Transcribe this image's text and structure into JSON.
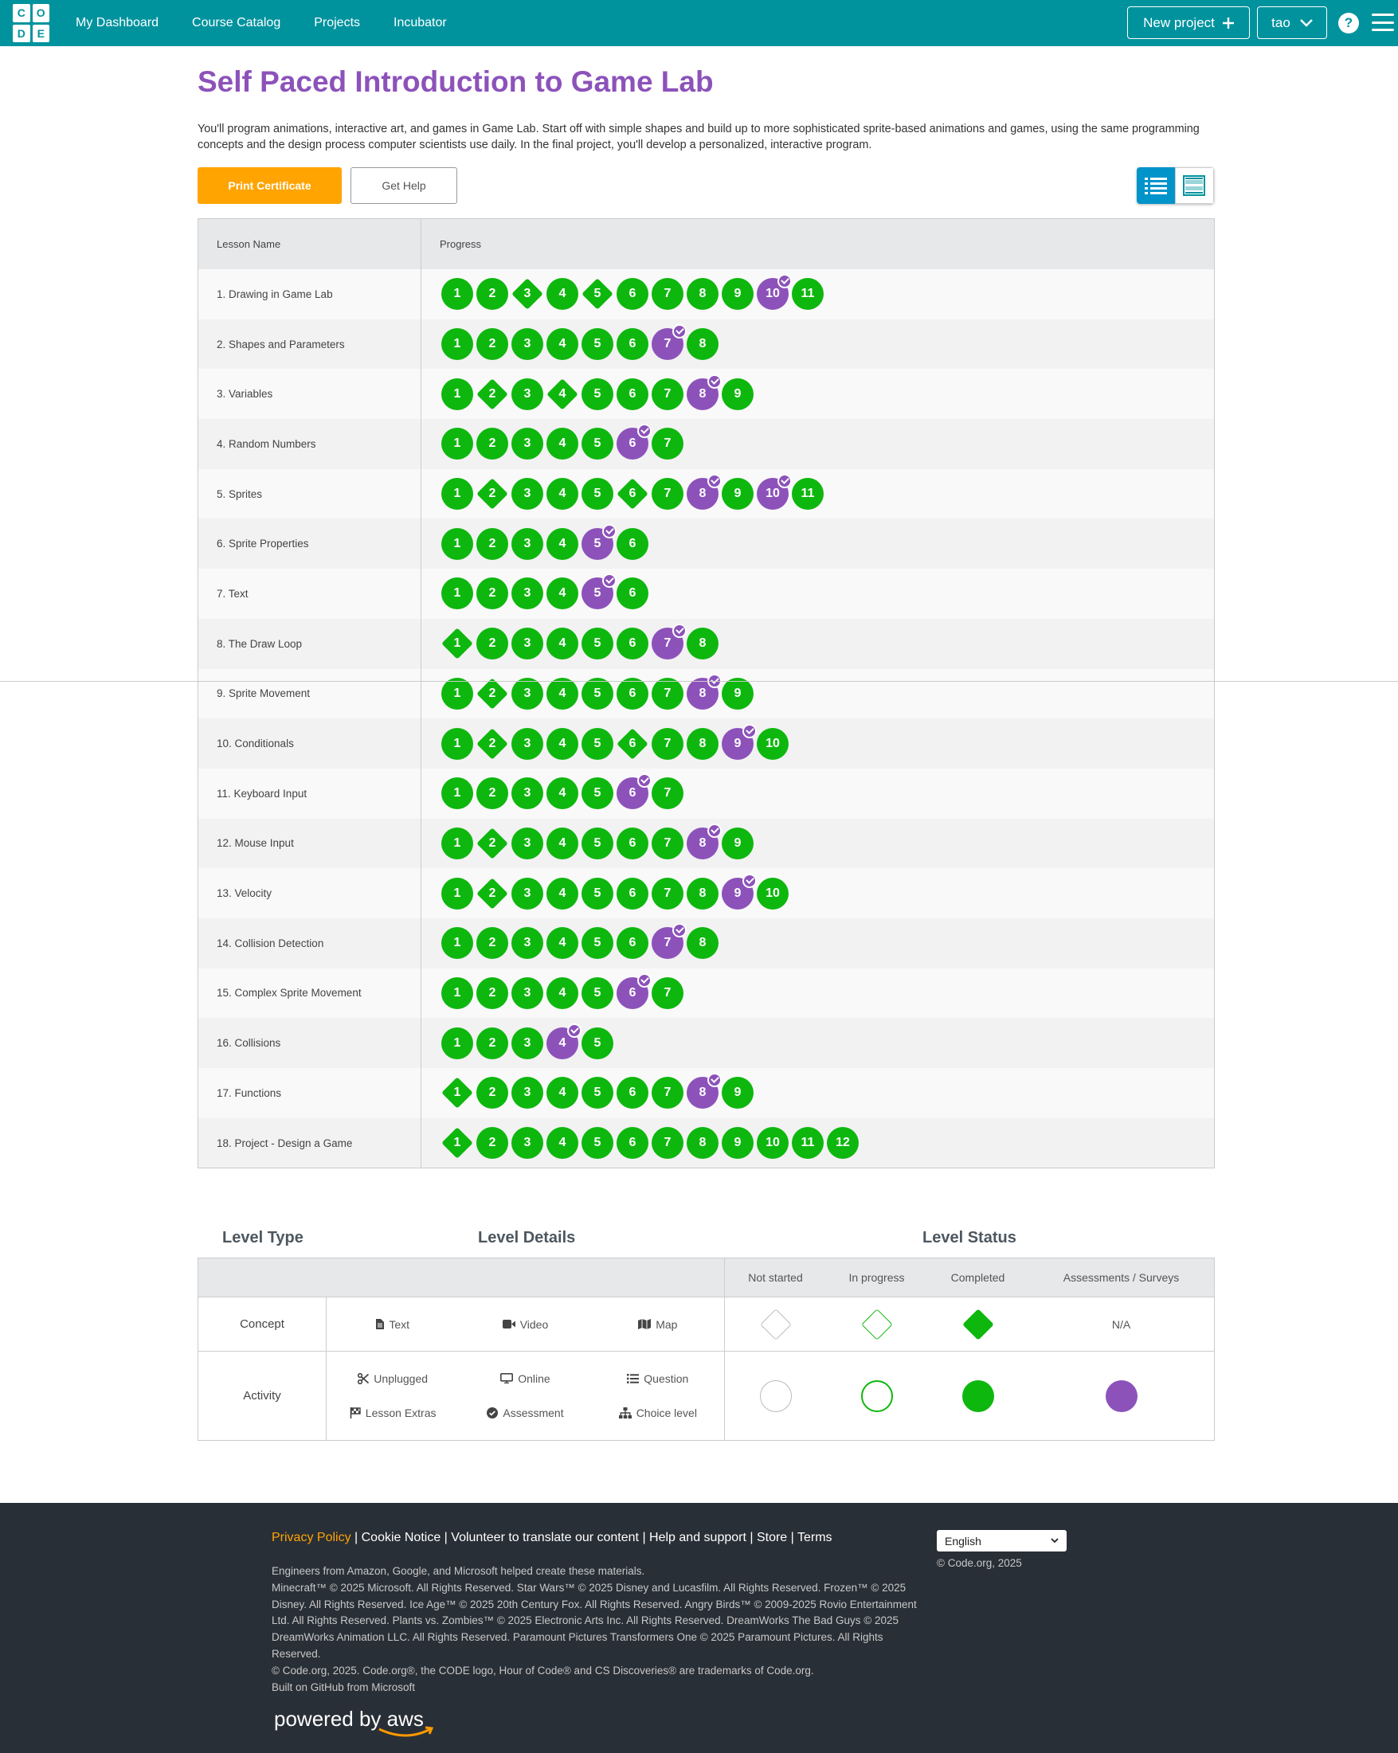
{
  "header": {
    "logo_letters": [
      "C",
      "O",
      "D",
      "E"
    ],
    "nav": [
      "My Dashboard",
      "Course Catalog",
      "Projects",
      "Incubator"
    ],
    "new_project": "New project",
    "user": "tao"
  },
  "course": {
    "title": "Self Paced Introduction to Game Lab",
    "description": "You'll program animations, interactive art, and games in Game Lab. Start off with simple shapes and build up to more sophisticated sprite-based animations and games, using the same programming concepts and the design process computer scientists use daily. In the final project, you'll develop a personalized, interactive program.",
    "print_certificate": "Print Certificate",
    "get_help": "Get Help"
  },
  "progress_table": {
    "col_lesson": "Lesson Name",
    "col_progress": "Progress",
    "lessons": [
      {
        "name": "1. Drawing in Game Lab",
        "levels": [
          [
            "1",
            "c"
          ],
          [
            "2",
            "c"
          ],
          [
            "3",
            "d"
          ],
          [
            "4",
            "c"
          ],
          [
            "5",
            "d"
          ],
          [
            "6",
            "c"
          ],
          [
            "7",
            "c"
          ],
          [
            "8",
            "c"
          ],
          [
            "9",
            "c"
          ],
          [
            "10",
            "a"
          ],
          [
            "11",
            "c"
          ]
        ]
      },
      {
        "name": "2. Shapes and Parameters",
        "levels": [
          [
            "1",
            "c"
          ],
          [
            "2",
            "c"
          ],
          [
            "3",
            "c"
          ],
          [
            "4",
            "c"
          ],
          [
            "5",
            "c"
          ],
          [
            "6",
            "c"
          ],
          [
            "7",
            "a"
          ],
          [
            "8",
            "c"
          ]
        ]
      },
      {
        "name": "3. Variables",
        "levels": [
          [
            "1",
            "c"
          ],
          [
            "2",
            "d"
          ],
          [
            "3",
            "c"
          ],
          [
            "4",
            "d"
          ],
          [
            "5",
            "c"
          ],
          [
            "6",
            "c"
          ],
          [
            "7",
            "c"
          ],
          [
            "8",
            "a"
          ],
          [
            "9",
            "c"
          ]
        ]
      },
      {
        "name": "4. Random Numbers",
        "levels": [
          [
            "1",
            "c"
          ],
          [
            "2",
            "c"
          ],
          [
            "3",
            "c"
          ],
          [
            "4",
            "c"
          ],
          [
            "5",
            "c"
          ],
          [
            "6",
            "a"
          ],
          [
            "7",
            "c"
          ]
        ]
      },
      {
        "name": "5. Sprites",
        "levels": [
          [
            "1",
            "c"
          ],
          [
            "2",
            "d"
          ],
          [
            "3",
            "c"
          ],
          [
            "4",
            "c"
          ],
          [
            "5",
            "c"
          ],
          [
            "6",
            "d"
          ],
          [
            "7",
            "c"
          ],
          [
            "8",
            "a"
          ],
          [
            "9",
            "c"
          ],
          [
            "10",
            "a"
          ],
          [
            "11",
            "c"
          ]
        ]
      },
      {
        "name": "6. Sprite Properties",
        "levels": [
          [
            "1",
            "c"
          ],
          [
            "2",
            "c"
          ],
          [
            "3",
            "c"
          ],
          [
            "4",
            "c"
          ],
          [
            "5",
            "a"
          ],
          [
            "6",
            "c"
          ]
        ]
      },
      {
        "name": "7. Text",
        "levels": [
          [
            "1",
            "c"
          ],
          [
            "2",
            "c"
          ],
          [
            "3",
            "c"
          ],
          [
            "4",
            "c"
          ],
          [
            "5",
            "a"
          ],
          [
            "6",
            "c"
          ]
        ]
      },
      {
        "name": "8. The Draw Loop",
        "levels": [
          [
            "1",
            "d"
          ],
          [
            "2",
            "c"
          ],
          [
            "3",
            "c"
          ],
          [
            "4",
            "c"
          ],
          [
            "5",
            "c"
          ],
          [
            "6",
            "c"
          ],
          [
            "7",
            "a"
          ],
          [
            "8",
            "c"
          ]
        ]
      },
      {
        "name": "9. Sprite Movement",
        "levels": [
          [
            "1",
            "c"
          ],
          [
            "2",
            "d"
          ],
          [
            "3",
            "c"
          ],
          [
            "4",
            "c"
          ],
          [
            "5",
            "c"
          ],
          [
            "6",
            "c"
          ],
          [
            "7",
            "c"
          ],
          [
            "8",
            "a"
          ],
          [
            "9",
            "c"
          ]
        ]
      },
      {
        "name": "10. Conditionals",
        "levels": [
          [
            "1",
            "c"
          ],
          [
            "2",
            "d"
          ],
          [
            "3",
            "c"
          ],
          [
            "4",
            "c"
          ],
          [
            "5",
            "c"
          ],
          [
            "6",
            "d"
          ],
          [
            "7",
            "c"
          ],
          [
            "8",
            "c"
          ],
          [
            "9",
            "a"
          ],
          [
            "10",
            "c"
          ]
        ]
      },
      {
        "name": "11. Keyboard Input",
        "levels": [
          [
            "1",
            "c"
          ],
          [
            "2",
            "c"
          ],
          [
            "3",
            "c"
          ],
          [
            "4",
            "c"
          ],
          [
            "5",
            "c"
          ],
          [
            "6",
            "a"
          ],
          [
            "7",
            "c"
          ]
        ]
      },
      {
        "name": "12. Mouse Input",
        "levels": [
          [
            "1",
            "c"
          ],
          [
            "2",
            "d"
          ],
          [
            "3",
            "c"
          ],
          [
            "4",
            "c"
          ],
          [
            "5",
            "c"
          ],
          [
            "6",
            "c"
          ],
          [
            "7",
            "c"
          ],
          [
            "8",
            "a"
          ],
          [
            "9",
            "c"
          ]
        ]
      },
      {
        "name": "13. Velocity",
        "levels": [
          [
            "1",
            "c"
          ],
          [
            "2",
            "d"
          ],
          [
            "3",
            "c"
          ],
          [
            "4",
            "c"
          ],
          [
            "5",
            "c"
          ],
          [
            "6",
            "c"
          ],
          [
            "7",
            "c"
          ],
          [
            "8",
            "c"
          ],
          [
            "9",
            "a"
          ],
          [
            "10",
            "c"
          ]
        ]
      },
      {
        "name": "14. Collision Detection",
        "levels": [
          [
            "1",
            "c"
          ],
          [
            "2",
            "c"
          ],
          [
            "3",
            "c"
          ],
          [
            "4",
            "c"
          ],
          [
            "5",
            "c"
          ],
          [
            "6",
            "c"
          ],
          [
            "7",
            "a"
          ],
          [
            "8",
            "c"
          ]
        ]
      },
      {
        "name": "15. Complex Sprite Movement",
        "levels": [
          [
            "1",
            "c"
          ],
          [
            "2",
            "c"
          ],
          [
            "3",
            "c"
          ],
          [
            "4",
            "c"
          ],
          [
            "5",
            "c"
          ],
          [
            "6",
            "a"
          ],
          [
            "7",
            "c"
          ]
        ]
      },
      {
        "name": "16. Collisions",
        "levels": [
          [
            "1",
            "c"
          ],
          [
            "2",
            "c"
          ],
          [
            "3",
            "c"
          ],
          [
            "4",
            "a"
          ],
          [
            "5",
            "c"
          ]
        ]
      },
      {
        "name": "17. Functions",
        "levels": [
          [
            "1",
            "d"
          ],
          [
            "2",
            "c"
          ],
          [
            "3",
            "c"
          ],
          [
            "4",
            "c"
          ],
          [
            "5",
            "c"
          ],
          [
            "6",
            "c"
          ],
          [
            "7",
            "c"
          ],
          [
            "8",
            "a"
          ],
          [
            "9",
            "c"
          ]
        ]
      },
      {
        "name": "18. Project - Design a Game",
        "levels": [
          [
            "1",
            "d"
          ],
          [
            "2",
            "c"
          ],
          [
            "3",
            "c"
          ],
          [
            "4",
            "c"
          ],
          [
            "5",
            "c"
          ],
          [
            "6",
            "c"
          ],
          [
            "7",
            "c"
          ],
          [
            "8",
            "c"
          ],
          [
            "9",
            "c"
          ],
          [
            "10",
            "c"
          ],
          [
            "11",
            "c"
          ],
          [
            "12",
            "c"
          ]
        ]
      }
    ]
  },
  "key": {
    "level_type": "Level Type",
    "level_details": "Level Details",
    "level_status": "Level Status",
    "statuses": [
      "Not started",
      "In progress",
      "Completed",
      "Assessments / Surveys"
    ],
    "concept": "Concept",
    "activity": "Activity",
    "na": "N/A",
    "concept_items": [
      "Text",
      "Video",
      "Map"
    ],
    "activity_items": [
      "Unplugged",
      "Online",
      "Question",
      "Lesson Extras",
      "Assessment",
      "Choice level"
    ]
  },
  "footer": {
    "links": [
      "Privacy Policy",
      "Cookie Notice",
      "Volunteer to translate our content",
      "Help and support",
      "Store",
      "Terms"
    ],
    "lines": [
      "Engineers from Amazon, Google, and Microsoft helped create these materials.",
      "Minecraft™ © 2025 Microsoft. All Rights Reserved. Star Wars™ © 2025 Disney and Lucasfilm. All Rights Reserved. Frozen™ © 2025 Disney. All Rights Reserved. Ice Age™ © 2025 20th Century Fox. All Rights Reserved. Angry Birds™ © 2009-2025 Rovio Entertainment Ltd. All Rights Reserved. Plants vs. Zombies™ © 2025 Electronic Arts Inc. All Rights Reserved. DreamWorks The Bad Guys © 2025 DreamWorks Animation LLC. All Rights Reserved. Paramount Pictures Transformers One © 2025 Paramount Pictures. All Rights Reserved.",
      "© Code.org, 2025. Code.org®, the CODE logo, Hour of Code® and CS Discoveries® are trademarks of Code.org.",
      "Built on GitHub from Microsoft"
    ],
    "language": "English",
    "copyright": "© Code.org, 2025",
    "aws": "powered by aws"
  },
  "colors": {
    "brand": "#00939e",
    "completed": "#0eb70e",
    "assessment": "#8c52ba",
    "accent": "#ffa400"
  }
}
